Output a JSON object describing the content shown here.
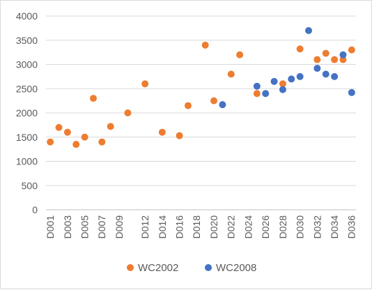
{
  "chart_data": {
    "type": "scatter",
    "categories": [
      "D001",
      "D002",
      "D003",
      "D004",
      "D005",
      "D006",
      "D007",
      "D008",
      "D009",
      "D010",
      "D011",
      "D012",
      "D013",
      "D014",
      "D015",
      "D016",
      "D017",
      "D018",
      "D019",
      "D020",
      "D021",
      "D022",
      "D023",
      "D024",
      "D025",
      "D026",
      "D027",
      "D028",
      "D029",
      "D030",
      "D031",
      "D032",
      "D033",
      "D034",
      "D035",
      "D036"
    ],
    "tick_labels": [
      "D001",
      "D003",
      "D005",
      "D007",
      "D009",
      "D012",
      "D014",
      "D016",
      "D018",
      "D020",
      "D022",
      "D024",
      "D026",
      "D028",
      "D030",
      "D032",
      "D034",
      "D036"
    ],
    "ylim": [
      0,
      4000
    ],
    "yticks": [
      0,
      500,
      1000,
      1500,
      2000,
      2500,
      3000,
      3500,
      4000
    ],
    "grid": true,
    "legend_position": "bottom",
    "series": [
      {
        "name": "WC2002",
        "color": "#ed7d31",
        "points": [
          {
            "x": "D001",
            "y": 1400
          },
          {
            "x": "D002",
            "y": 1700
          },
          {
            "x": "D003",
            "y": 1600
          },
          {
            "x": "D004",
            "y": 1350
          },
          {
            "x": "D005",
            "y": 1500
          },
          {
            "x": "D006",
            "y": 2300
          },
          {
            "x": "D007",
            "y": 1400
          },
          {
            "x": "D008",
            "y": 1720
          },
          {
            "x": "D010",
            "y": 2000
          },
          {
            "x": "D012",
            "y": 2600
          },
          {
            "x": "D014",
            "y": 1600
          },
          {
            "x": "D016",
            "y": 1530
          },
          {
            "x": "D017",
            "y": 2150
          },
          {
            "x": "D019",
            "y": 3400
          },
          {
            "x": "D020",
            "y": 2250
          },
          {
            "x": "D022",
            "y": 2800
          },
          {
            "x": "D023",
            "y": 3200
          },
          {
            "x": "D025",
            "y": 2400
          },
          {
            "x": "D028",
            "y": 2600
          },
          {
            "x": "D030",
            "y": 3320
          },
          {
            "x": "D032",
            "y": 3100
          },
          {
            "x": "D033",
            "y": 3230
          },
          {
            "x": "D034",
            "y": 3100
          },
          {
            "x": "D035",
            "y": 3100
          },
          {
            "x": "D036",
            "y": 3300
          }
        ]
      },
      {
        "name": "WC2008",
        "color": "#4472c4",
        "points": [
          {
            "x": "D021",
            "y": 2170
          },
          {
            "x": "D025",
            "y": 2550
          },
          {
            "x": "D026",
            "y": 2400
          },
          {
            "x": "D027",
            "y": 2650
          },
          {
            "x": "D028",
            "y": 2480
          },
          {
            "x": "D029",
            "y": 2700
          },
          {
            "x": "D030",
            "y": 2750
          },
          {
            "x": "D031",
            "y": 3700
          },
          {
            "x": "D032",
            "y": 2920
          },
          {
            "x": "D033",
            "y": 2800
          },
          {
            "x": "D034",
            "y": 2750
          },
          {
            "x": "D035",
            "y": 3200
          },
          {
            "x": "D036",
            "y": 2420
          }
        ]
      }
    ]
  }
}
